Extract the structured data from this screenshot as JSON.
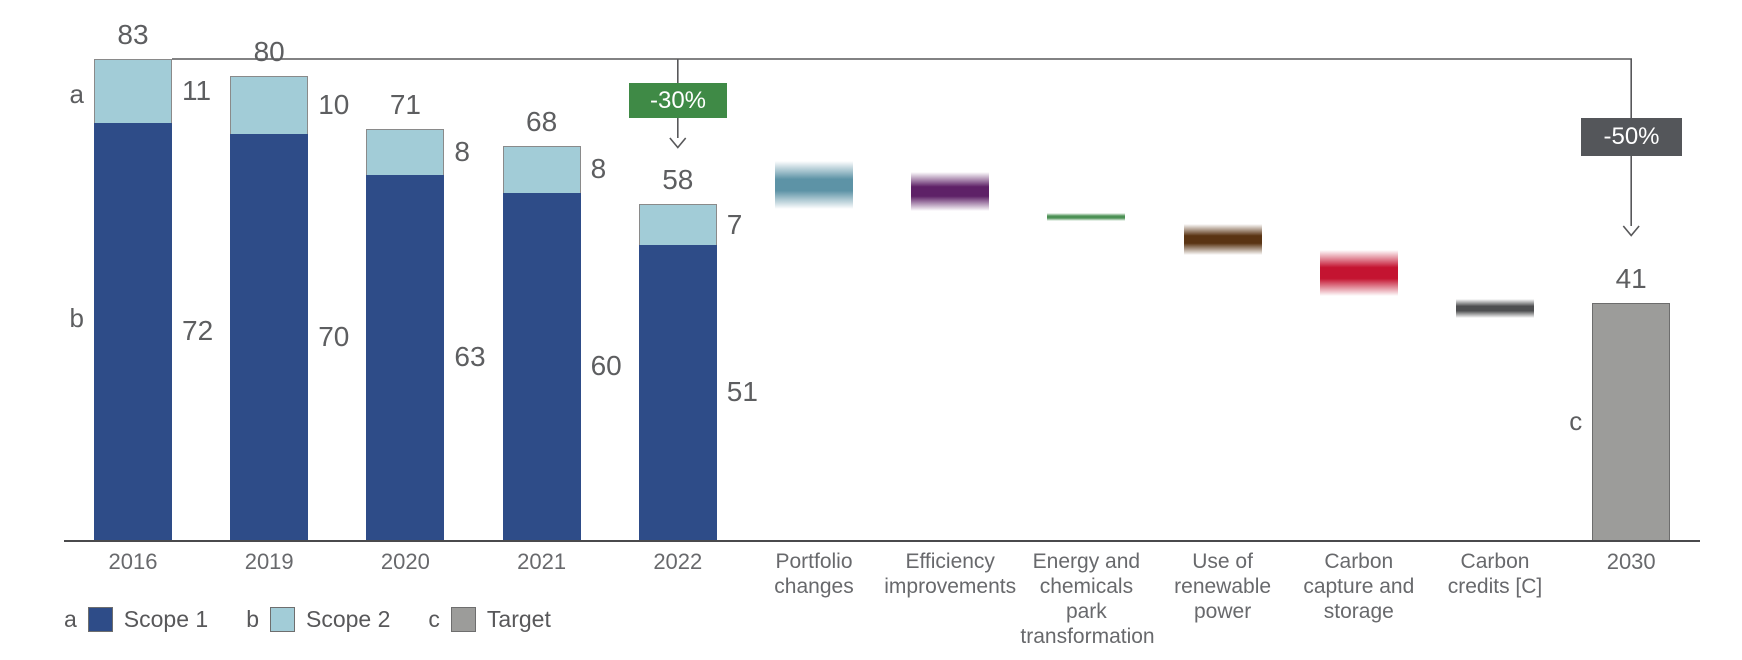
{
  "chart_data": {
    "type": "waterfall-stacked-bar",
    "title": "",
    "ylim": [
      0,
      83
    ],
    "grid": false,
    "stacked_bars": [
      {
        "category": "2016",
        "scope1": 72,
        "scope2": 11,
        "total": 83
      },
      {
        "category": "2019",
        "scope1": 70,
        "scope2": 10,
        "total": 80
      },
      {
        "category": "2020",
        "scope1": 63,
        "scope2": 8,
        "total": 71
      },
      {
        "category": "2021",
        "scope1": 60,
        "scope2": 8,
        "total": 68
      },
      {
        "category": "2022",
        "scope1": 51,
        "scope2": 7,
        "total": 58
      }
    ],
    "levers": [
      {
        "category": "Portfolio changes",
        "color": "#5d93a6",
        "from": 65.4,
        "to": 57.2
      },
      {
        "category": "Efficiency improvements",
        "color": "#5e2167",
        "from": 63.5,
        "to": 56.8
      },
      {
        "category": "Energy and chemicals park transformation",
        "color": "#4c9155",
        "from": 56.5,
        "to": 55.1
      },
      {
        "category": "Use of renewable power",
        "color": "#5a3413",
        "from": 54.6,
        "to": 49.2
      },
      {
        "category": "Carbon capture and storage",
        "color": "#c41431",
        "from": 50.1,
        "to": 42.2
      },
      {
        "category": "Carbon credits [C]",
        "color": "#4e4f51",
        "from": 41.7,
        "to": 38.4
      }
    ],
    "target_bar": {
      "category": "2030",
      "value": 41,
      "color": "#9c9c9a",
      "border": "#6d6d6d"
    },
    "annotations": [
      {
        "text": "-30%",
        "color": "#3f8a46",
        "at_category": "2022"
      },
      {
        "text": "-50%",
        "color": "#54565a",
        "at_category": "2030"
      }
    ],
    "side_markers": [
      "a",
      "b",
      "c"
    ],
    "legend": [
      {
        "key": "a",
        "label": "Scope 1",
        "color": "#2e4c88"
      },
      {
        "key": "b",
        "label": "Scope 2",
        "color": "#a2ccd7"
      },
      {
        "key": "c",
        "label": "Target",
        "color": "#9c9c9a"
      }
    ]
  }
}
